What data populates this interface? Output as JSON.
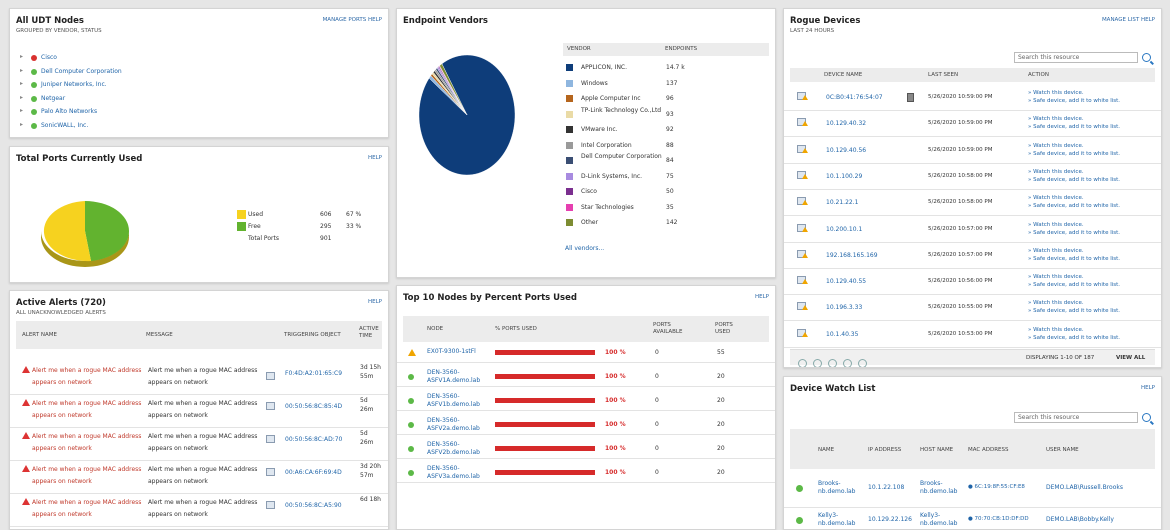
{
  "udt": {
    "title": "All UDT Nodes",
    "subtitle": "GROUPED BY VENDOR, STATUS",
    "links": "MANAGE PORTS  HELP",
    "items": [
      {
        "label": "Cisco",
        "status": "#d9312f"
      },
      {
        "label": "Dell Computer Corporation",
        "status": "#5cb947"
      },
      {
        "label": "Juniper Networks, Inc.",
        "status": "#5cb947"
      },
      {
        "label": "Netgear",
        "status": "#5cb947"
      },
      {
        "label": "Palo Alto Networks",
        "status": "#5cb947"
      },
      {
        "label": "SonicWALL, Inc.",
        "status": "#5cb947"
      }
    ]
  },
  "ports": {
    "title": "Total Ports Currently Used",
    "help": "HELP",
    "rows": [
      {
        "label": "Used",
        "count": "606",
        "pct": "67 %",
        "color": "#f6d21f"
      },
      {
        "label": "Free",
        "count": "295",
        "pct": "33 %",
        "color": "#62b32f"
      },
      {
        "label": "Total Ports",
        "count": "901",
        "pct": "",
        "color": ""
      }
    ]
  },
  "alerts": {
    "title": "Active Alerts (720)",
    "subtitle": "ALL UNACKNOWLEDGED ALERTS",
    "help": "HELP",
    "columns": {
      "name": "ALERT NAME",
      "message": "MESSAGE",
      "object": "TRIGGERING OBJECT",
      "time": "ACTIVE TIME"
    },
    "rows": [
      {
        "name": "Alert me when a rogue MAC address appears on network",
        "message": "Alert me when a rogue MAC address appears on network",
        "object": "F0:4D:A2:01:65:C9",
        "time": "3d 15h 55m"
      },
      {
        "name": "Alert me when a rogue MAC address appears on network",
        "message": "Alert me when a rogue MAC address appears on network",
        "object": "00:50:56:8C:85:4D",
        "time": "5d 26m"
      },
      {
        "name": "Alert me when a rogue MAC address appears on network",
        "message": "Alert me when a rogue MAC address appears on network",
        "object": "00:50:56:8C:AD:70",
        "time": "5d 26m"
      },
      {
        "name": "Alert me when a rogue MAC address appears on network",
        "message": "Alert me when a rogue MAC address appears on network",
        "object": "00:A6:CA:6F:69:4D",
        "time": "3d 20h 57m"
      },
      {
        "name": "Alert me when a rogue MAC address appears on network",
        "message": "Alert me when a rogue MAC address appears on network",
        "object": "00:50:56:8C:A5:90",
        "time": "6d 18h"
      }
    ]
  },
  "vendors": {
    "title": "Endpoint Vendors",
    "col_vendor": "VENDOR",
    "col_endpoints": "ENDPOINTS",
    "all_link": "All vendors...",
    "rows": [
      {
        "name": "APPLICON, INC.",
        "value": "14.7 k",
        "color": "#0e3d7a"
      },
      {
        "name": "Windows",
        "value": "137",
        "color": "#8fb6df"
      },
      {
        "name": "Apple Computer Inc",
        "value": "96",
        "color": "#b5651d"
      },
      {
        "name": "TP-Link Technology Co.,Ltd",
        "value": "93",
        "color": "#eadba6"
      },
      {
        "name": "VMware Inc.",
        "value": "92",
        "color": "#333333"
      },
      {
        "name": "Intel Corporation",
        "value": "88",
        "color": "#9a9a9a"
      },
      {
        "name": "Dell Computer Corporation",
        "value": "84",
        "color": "#3a4e73"
      },
      {
        "name": "D-Link Systems, Inc.",
        "value": "75",
        "color": "#a88be0"
      },
      {
        "name": "Cisco",
        "value": "50",
        "color": "#7b2f8f"
      },
      {
        "name": "Star Technologies",
        "value": "35",
        "color": "#e63fb0"
      },
      {
        "name": "Other",
        "value": "142",
        "color": "#7d8c32"
      }
    ]
  },
  "top10": {
    "title": "Top 10 Nodes by Percent Ports Used",
    "help": "HELP",
    "columns": {
      "node": "NODE",
      "pct": "% PORTS USED",
      "avail": "PORTS AVAILABLE",
      "used": "PORTS USED"
    },
    "rows": [
      {
        "node": "EX0T-9300-1stFl",
        "pct": "100 %",
        "avail": "0",
        "used": "55",
        "status": "warn",
        "fill": 1
      },
      {
        "node": "DEN-3560-ASFV1A.demo.lab",
        "pct": "100 %",
        "avail": "0",
        "used": "20",
        "status": "up",
        "fill": 1
      },
      {
        "node": "DEN-3560-ASFV1b.demo.lab",
        "pct": "100 %",
        "avail": "0",
        "used": "20",
        "status": "up",
        "fill": 1
      },
      {
        "node": "DEN-3560-ASFV2a.demo.lab",
        "pct": "100 %",
        "avail": "0",
        "used": "20",
        "status": "up",
        "fill": 1
      },
      {
        "node": "DEN-3560-ASFV2b.demo.lab",
        "pct": "100 %",
        "avail": "0",
        "used": "20",
        "status": "up",
        "fill": 1
      },
      {
        "node": "DEN-3560-ASFV3a.demo.lab",
        "pct": "100 %",
        "avail": "0",
        "used": "20",
        "status": "up",
        "fill": 1
      }
    ]
  },
  "rogue": {
    "title": "Rogue Devices",
    "subtitle": "LAST 24 HOURS",
    "links": "MANAGE LIST  HELP",
    "search_placeholder": "Search this resource",
    "columns": {
      "name": "DEVICE NAME",
      "seen": "LAST SEEN",
      "action": "ACTION"
    },
    "watch": "» Watch this device.",
    "safe": "» Safe device, add it to white list.",
    "rows": [
      {
        "name": "0C:B0:41:76:54:07",
        "seen": "5/26/2020 10:59:00 PM"
      },
      {
        "name": "10.129.40.32",
        "seen": "5/26/2020 10:59:00 PM"
      },
      {
        "name": "10.129.40.56",
        "seen": "5/26/2020 10:59:00 PM"
      },
      {
        "name": "10.1.100.29",
        "seen": "5/26/2020 10:58:00 PM"
      },
      {
        "name": "10.21.22.1",
        "seen": "5/26/2020 10:58:00 PM"
      },
      {
        "name": "10.200.10.1",
        "seen": "5/26/2020 10:57:00 PM"
      },
      {
        "name": "192.168.165.169",
        "seen": "5/26/2020 10:57:00 PM"
      },
      {
        "name": "10.129.40.55",
        "seen": "5/26/2020 10:56:00 PM"
      },
      {
        "name": "10.196.3.33",
        "seen": "5/26/2020 10:55:00 PM"
      },
      {
        "name": "10.1.40.35",
        "seen": "5/26/2020 10:53:00 PM"
      }
    ],
    "displaying": "DISPLAYING 1-10 OF 187",
    "view_all": "VIEW ALL"
  },
  "watch": {
    "title": "Device Watch List",
    "help": "HELP",
    "search_placeholder": "Search this resource",
    "columns": {
      "name": "NAME",
      "ip": "IP ADDRESS",
      "host": "HOST NAME",
      "mac": "MAC ADDRESS",
      "user": "USER NAME"
    },
    "rows": [
      {
        "name": "Brooks-nb.demo.lab",
        "ip": "10.1.22.108",
        "host": "Brooks-nb.demo.lab",
        "mac": "6C:19:8F:55:CF:E8",
        "user": "DEMO.LAB\\Russell.Brooks"
      },
      {
        "name": "Kelly3-nb.demo.lab",
        "ip": "10.129.22.126",
        "host": "Kelly3-nb.demo.lab",
        "mac": "70:70:CB:1D:DF:DD",
        "user": "DEMO.LAB\\Bobby.Kelly"
      }
    ]
  }
}
